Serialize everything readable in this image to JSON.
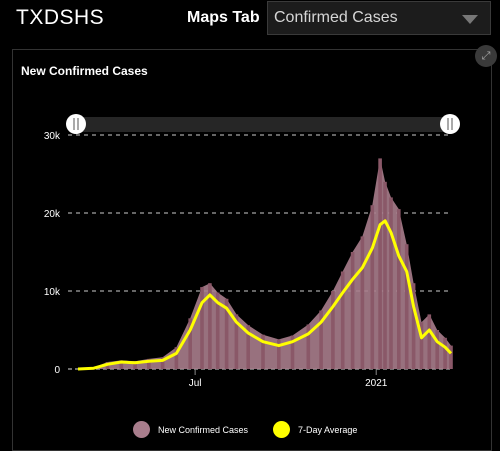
{
  "header": {
    "app_title": "TXDSHS",
    "maps_tab_label": "Maps Tab",
    "dropdown_value": "Confirmed Cases"
  },
  "panel": {
    "title": "New Confirmed Cases",
    "expand_icon": "expand-icon"
  },
  "colors": {
    "bars": "#8a5868",
    "area": "#a87d8c",
    "average_line": "#ffff00",
    "grid": "#cccccc",
    "scrollbar_track": "#262626"
  },
  "legend": {
    "items": [
      {
        "label": "New Confirmed Cases",
        "color": "#a87d8c"
      },
      {
        "label": "7-Day Average",
        "color": "#ffff00"
      }
    ]
  },
  "chart_data": {
    "type": "bar",
    "title": "New Confirmed Cases",
    "xlabel": "",
    "ylabel": "",
    "ylim": [
      0,
      30000
    ],
    "y_ticks": [
      {
        "value": 0,
        "label": "0"
      },
      {
        "value": 10000,
        "label": "10k"
      },
      {
        "value": 20000,
        "label": "20k"
      },
      {
        "value": 30000,
        "label": "30k"
      }
    ],
    "x_ticks": [
      {
        "date": "2020-07-01",
        "label": "Jul"
      },
      {
        "date": "2021-01-01",
        "label": "2021"
      }
    ],
    "x_range": [
      "2020-03-04",
      "2021-03-18"
    ],
    "grid": true,
    "legend_position": "bottom",
    "series": [
      {
        "name": "7-Day Average",
        "type": "line",
        "points": [
          [
            "2020-03-04",
            0
          ],
          [
            "2020-03-20",
            100
          ],
          [
            "2020-04-03",
            600
          ],
          [
            "2020-04-17",
            900
          ],
          [
            "2020-05-01",
            800
          ],
          [
            "2020-05-15",
            1000
          ],
          [
            "2020-05-29",
            1100
          ],
          [
            "2020-06-12",
            2000
          ],
          [
            "2020-06-26",
            5000
          ],
          [
            "2020-07-08",
            8500
          ],
          [
            "2020-07-16",
            9500
          ],
          [
            "2020-07-24",
            8500
          ],
          [
            "2020-08-02",
            7800
          ],
          [
            "2020-08-12",
            6000
          ],
          [
            "2020-08-24",
            4600
          ],
          [
            "2020-09-08",
            3500
          ],
          [
            "2020-09-24",
            3000
          ],
          [
            "2020-10-08",
            3500
          ],
          [
            "2020-10-24",
            4500
          ],
          [
            "2020-11-06",
            6000
          ],
          [
            "2020-11-18",
            8000
          ],
          [
            "2020-11-28",
            9800
          ],
          [
            "2020-12-08",
            11500
          ],
          [
            "2020-12-18",
            13000
          ],
          [
            "2020-12-28",
            15500
          ],
          [
            "2021-01-05",
            18500
          ],
          [
            "2021-01-10",
            19000
          ],
          [
            "2021-01-16",
            17500
          ],
          [
            "2021-01-24",
            14500
          ],
          [
            "2021-02-01",
            12500
          ],
          [
            "2021-02-08",
            8000
          ],
          [
            "2021-02-16",
            4000
          ],
          [
            "2021-02-24",
            5000
          ],
          [
            "2021-03-04",
            3500
          ],
          [
            "2021-03-12",
            2800
          ],
          [
            "2021-03-18",
            2000
          ]
        ]
      },
      {
        "name": "New Confirmed Cases",
        "type": "bar",
        "points": [
          [
            "2020-03-04",
            0
          ],
          [
            "2020-03-20",
            200
          ],
          [
            "2020-04-03",
            900
          ],
          [
            "2020-04-17",
            1100
          ],
          [
            "2020-05-01",
            1000
          ],
          [
            "2020-05-15",
            1300
          ],
          [
            "2020-05-29",
            1500
          ],
          [
            "2020-06-12",
            2800
          ],
          [
            "2020-06-26",
            6500
          ],
          [
            "2020-07-08",
            10500
          ],
          [
            "2020-07-16",
            11000
          ],
          [
            "2020-07-24",
            9800
          ],
          [
            "2020-08-02",
            9000
          ],
          [
            "2020-08-12",
            7000
          ],
          [
            "2020-08-24",
            5600
          ],
          [
            "2020-09-08",
            4400
          ],
          [
            "2020-09-24",
            3800
          ],
          [
            "2020-10-08",
            4300
          ],
          [
            "2020-10-24",
            5700
          ],
          [
            "2020-11-06",
            7500
          ],
          [
            "2020-11-18",
            10000
          ],
          [
            "2020-11-28",
            12500
          ],
          [
            "2020-12-08",
            15000
          ],
          [
            "2020-12-18",
            17000
          ],
          [
            "2020-12-28",
            21000
          ],
          [
            "2021-01-05",
            27000
          ],
          [
            "2021-01-10",
            24000
          ],
          [
            "2021-01-16",
            22000
          ],
          [
            "2021-01-24",
            20500
          ],
          [
            "2021-02-01",
            16000
          ],
          [
            "2021-02-08",
            11000
          ],
          [
            "2021-02-16",
            6000
          ],
          [
            "2021-02-24",
            7000
          ],
          [
            "2021-03-04",
            5000
          ],
          [
            "2021-03-12",
            4000
          ],
          [
            "2021-03-18",
            3000
          ]
        ]
      }
    ]
  }
}
